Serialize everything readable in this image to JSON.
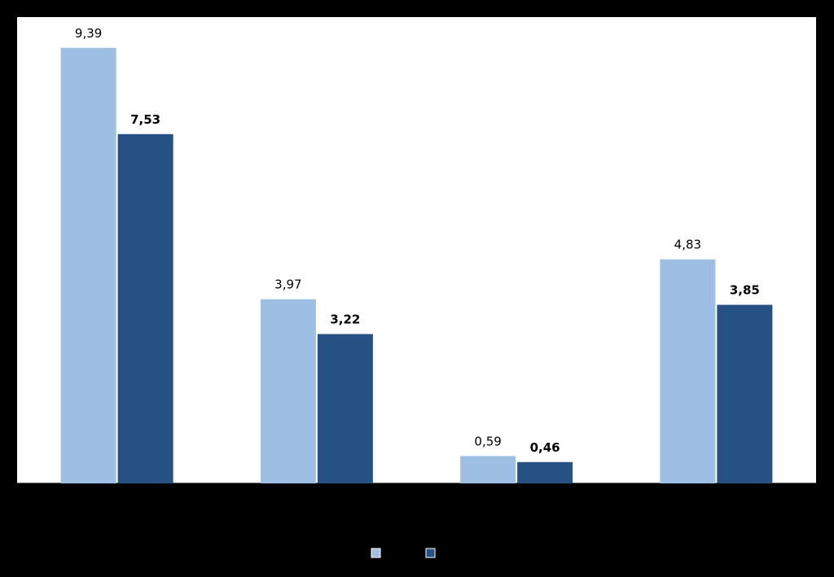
{
  "chart_data": {
    "type": "bar",
    "categories": [
      "",
      "",
      "",
      ""
    ],
    "series": [
      {
        "values": [
          9.39,
          3.97,
          0.59,
          4.83
        ],
        "labels": [
          "9,39",
          "3,97",
          "0,59",
          "4,83"
        ],
        "color": "#9dbfe4",
        "label_bold": false
      },
      {
        "values": [
          7.53,
          3.22,
          0.46,
          3.85
        ],
        "labels": [
          "7,53",
          "3,22",
          "0,46",
          "3,85"
        ],
        "color": "#265185",
        "label_bold": true
      }
    ],
    "ylim": [
      0,
      10
    ],
    "grid": false,
    "legend_position": "bottom",
    "colors": {
      "page_background": "#000000",
      "plot_background": "#ffffff",
      "axis": "#000000"
    }
  }
}
